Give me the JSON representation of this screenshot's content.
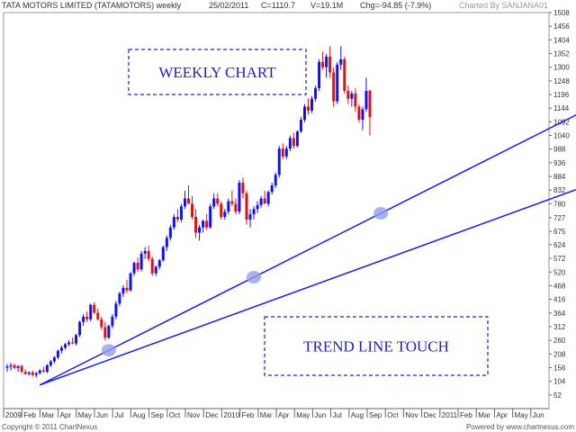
{
  "header": {
    "title": "TATA MOTORS LIMITED (TATAMOTORS) weekly",
    "date": "25/02/2011",
    "close": "C=1110.7",
    "volume": "V=19.1M",
    "change": "Chg=-94.85 (-7.9%)",
    "charted_by": "Charted By SANJANA01"
  },
  "footer": {
    "copyright": "Copyright © 2011 ChartNexus",
    "powered": "Powered by www.chartnexus.com"
  },
  "colors": {
    "up": "#1010ff",
    "down": "#e01010",
    "trendline": "#1a1aff",
    "annotation": "#2020cc",
    "touch": "#8f9ff0"
  },
  "chart_data": {
    "type": "candlestick",
    "timeframe": "weekly",
    "ylim": [
      0,
      1508
    ],
    "y_ticks": [
      52,
      104,
      156,
      208,
      260,
      312,
      364,
      416,
      468,
      520,
      572,
      624,
      675,
      727,
      780,
      832,
      884,
      936,
      988,
      1040,
      1092,
      1144,
      1196,
      1248,
      1300,
      1352,
      1404,
      1456,
      1508
    ],
    "x_ticks": [
      "2009",
      "Feb",
      "Mar",
      "Apr",
      "May",
      "Jun",
      "Jul",
      "Aug",
      "Sep",
      "Oct",
      "Nov",
      "Dec",
      "2010",
      "Feb",
      "Mar",
      "Apr",
      "May",
      "Jun",
      "Jul",
      "Aug",
      "Sep",
      "Oct",
      "Nov",
      "Dec",
      "2011",
      "Feb",
      "Mar",
      "Apr",
      "May",
      "Jun"
    ],
    "grid": false,
    "candles": [
      {
        "o": 155,
        "h": 170,
        "l": 140,
        "c": 160
      },
      {
        "o": 160,
        "h": 175,
        "l": 145,
        "c": 165
      },
      {
        "o": 165,
        "h": 172,
        "l": 150,
        "c": 155
      },
      {
        "o": 155,
        "h": 165,
        "l": 140,
        "c": 162
      },
      {
        "o": 162,
        "h": 168,
        "l": 135,
        "c": 140
      },
      {
        "o": 140,
        "h": 150,
        "l": 128,
        "c": 132
      },
      {
        "o": 132,
        "h": 142,
        "l": 125,
        "c": 138
      },
      {
        "o": 138,
        "h": 145,
        "l": 122,
        "c": 128
      },
      {
        "o": 128,
        "h": 140,
        "l": 118,
        "c": 135
      },
      {
        "o": 135,
        "h": 150,
        "l": 130,
        "c": 145
      },
      {
        "o": 145,
        "h": 160,
        "l": 138,
        "c": 140
      },
      {
        "o": 140,
        "h": 170,
        "l": 135,
        "c": 165
      },
      {
        "o": 165,
        "h": 185,
        "l": 158,
        "c": 180
      },
      {
        "o": 180,
        "h": 200,
        "l": 172,
        "c": 195
      },
      {
        "o": 195,
        "h": 225,
        "l": 188,
        "c": 220
      },
      {
        "o": 220,
        "h": 240,
        "l": 210,
        "c": 232
      },
      {
        "o": 232,
        "h": 250,
        "l": 225,
        "c": 245
      },
      {
        "o": 245,
        "h": 260,
        "l": 238,
        "c": 252
      },
      {
        "o": 252,
        "h": 270,
        "l": 245,
        "c": 248
      },
      {
        "o": 248,
        "h": 285,
        "l": 240,
        "c": 280
      },
      {
        "o": 280,
        "h": 335,
        "l": 272,
        "c": 330
      },
      {
        "o": 330,
        "h": 360,
        "l": 315,
        "c": 350
      },
      {
        "o": 350,
        "h": 370,
        "l": 330,
        "c": 340
      },
      {
        "o": 340,
        "h": 400,
        "l": 332,
        "c": 395
      },
      {
        "o": 395,
        "h": 405,
        "l": 360,
        "c": 365
      },
      {
        "o": 365,
        "h": 380,
        "l": 335,
        "c": 340
      },
      {
        "o": 340,
        "h": 350,
        "l": 300,
        "c": 310
      },
      {
        "o": 310,
        "h": 330,
        "l": 260,
        "c": 270
      },
      {
        "o": 270,
        "h": 320,
        "l": 265,
        "c": 315
      },
      {
        "o": 315,
        "h": 360,
        "l": 305,
        "c": 350
      },
      {
        "o": 350,
        "h": 410,
        "l": 340,
        "c": 400
      },
      {
        "o": 400,
        "h": 445,
        "l": 390,
        "c": 438
      },
      {
        "o": 438,
        "h": 470,
        "l": 425,
        "c": 460
      },
      {
        "o": 460,
        "h": 490,
        "l": 440,
        "c": 450
      },
      {
        "o": 450,
        "h": 520,
        "l": 445,
        "c": 515
      },
      {
        "o": 515,
        "h": 560,
        "l": 505,
        "c": 555
      },
      {
        "o": 555,
        "h": 575,
        "l": 520,
        "c": 530
      },
      {
        "o": 530,
        "h": 600,
        "l": 522,
        "c": 590
      },
      {
        "o": 590,
        "h": 615,
        "l": 570,
        "c": 600
      },
      {
        "o": 600,
        "h": 620,
        "l": 560,
        "c": 570
      },
      {
        "o": 570,
        "h": 580,
        "l": 505,
        "c": 515
      },
      {
        "o": 515,
        "h": 545,
        "l": 505,
        "c": 540
      },
      {
        "o": 540,
        "h": 570,
        "l": 530,
        "c": 565
      },
      {
        "o": 565,
        "h": 620,
        "l": 560,
        "c": 615
      },
      {
        "o": 615,
        "h": 660,
        "l": 600,
        "c": 650
      },
      {
        "o": 650,
        "h": 700,
        "l": 640,
        "c": 690
      },
      {
        "o": 690,
        "h": 740,
        "l": 680,
        "c": 730
      },
      {
        "o": 730,
        "h": 760,
        "l": 710,
        "c": 720
      },
      {
        "o": 720,
        "h": 780,
        "l": 710,
        "c": 770
      },
      {
        "o": 770,
        "h": 830,
        "l": 760,
        "c": 800
      },
      {
        "o": 800,
        "h": 850,
        "l": 790,
        "c": 780
      },
      {
        "o": 780,
        "h": 810,
        "l": 720,
        "c": 730
      },
      {
        "o": 730,
        "h": 760,
        "l": 650,
        "c": 670
      },
      {
        "o": 670,
        "h": 700,
        "l": 640,
        "c": 690
      },
      {
        "o": 690,
        "h": 720,
        "l": 670,
        "c": 715
      },
      {
        "o": 715,
        "h": 740,
        "l": 680,
        "c": 690
      },
      {
        "o": 690,
        "h": 780,
        "l": 685,
        "c": 770
      },
      {
        "o": 770,
        "h": 820,
        "l": 760,
        "c": 800
      },
      {
        "o": 800,
        "h": 820,
        "l": 770,
        "c": 780
      },
      {
        "o": 780,
        "h": 790,
        "l": 720,
        "c": 730
      },
      {
        "o": 730,
        "h": 760,
        "l": 720,
        "c": 750
      },
      {
        "o": 750,
        "h": 800,
        "l": 740,
        "c": 790
      },
      {
        "o": 790,
        "h": 830,
        "l": 770,
        "c": 780
      },
      {
        "o": 780,
        "h": 800,
        "l": 740,
        "c": 750
      },
      {
        "o": 750,
        "h": 870,
        "l": 740,
        "c": 860
      },
      {
        "o": 860,
        "h": 880,
        "l": 800,
        "c": 820
      },
      {
        "o": 820,
        "h": 830,
        "l": 700,
        "c": 720
      },
      {
        "o": 720,
        "h": 760,
        "l": 690,
        "c": 740
      },
      {
        "o": 740,
        "h": 770,
        "l": 720,
        "c": 760
      },
      {
        "o": 760,
        "h": 790,
        "l": 745,
        "c": 775
      },
      {
        "o": 775,
        "h": 810,
        "l": 765,
        "c": 800
      },
      {
        "o": 800,
        "h": 830,
        "l": 790,
        "c": 780
      },
      {
        "o": 780,
        "h": 830,
        "l": 770,
        "c": 825
      },
      {
        "o": 825,
        "h": 860,
        "l": 815,
        "c": 850
      },
      {
        "o": 850,
        "h": 900,
        "l": 840,
        "c": 890
      },
      {
        "o": 890,
        "h": 1000,
        "l": 880,
        "c": 990
      },
      {
        "o": 990,
        "h": 1010,
        "l": 950,
        "c": 960
      },
      {
        "o": 960,
        "h": 1000,
        "l": 950,
        "c": 990
      },
      {
        "o": 990,
        "h": 1040,
        "l": 980,
        "c": 1030
      },
      {
        "o": 1030,
        "h": 1050,
        "l": 990,
        "c": 1000
      },
      {
        "o": 1000,
        "h": 1060,
        "l": 995,
        "c": 1055
      },
      {
        "o": 1055,
        "h": 1110,
        "l": 1050,
        "c": 1100
      },
      {
        "o": 1100,
        "h": 1160,
        "l": 1090,
        "c": 1150
      },
      {
        "o": 1150,
        "h": 1180,
        "l": 1120,
        "c": 1135
      },
      {
        "o": 1135,
        "h": 1190,
        "l": 1125,
        "c": 1180
      },
      {
        "o": 1180,
        "h": 1230,
        "l": 1170,
        "c": 1220
      },
      {
        "o": 1220,
        "h": 1330,
        "l": 1210,
        "c": 1320
      },
      {
        "o": 1320,
        "h": 1360,
        "l": 1290,
        "c": 1300
      },
      {
        "o": 1300,
        "h": 1350,
        "l": 1260,
        "c": 1340
      },
      {
        "o": 1340,
        "h": 1380,
        "l": 1260,
        "c": 1280
      },
      {
        "o": 1280,
        "h": 1300,
        "l": 1150,
        "c": 1170
      },
      {
        "o": 1170,
        "h": 1320,
        "l": 1160,
        "c": 1310
      },
      {
        "o": 1310,
        "h": 1380,
        "l": 1290,
        "c": 1330
      },
      {
        "o": 1330,
        "h": 1340,
        "l": 1200,
        "c": 1210
      },
      {
        "o": 1210,
        "h": 1230,
        "l": 1160,
        "c": 1180
      },
      {
        "o": 1180,
        "h": 1210,
        "l": 1150,
        "c": 1200
      },
      {
        "o": 1200,
        "h": 1220,
        "l": 1130,
        "c": 1150
      },
      {
        "o": 1150,
        "h": 1160,
        "l": 1090,
        "c": 1100
      },
      {
        "o": 1100,
        "h": 1150,
        "l": 1060,
        "c": 1140
      },
      {
        "o": 1140,
        "h": 1260,
        "l": 1130,
        "c": 1210
      },
      {
        "o": 1210,
        "h": 1215,
        "l": 1040,
        "c": 1110
      }
    ],
    "annotations": [
      {
        "text": "WEEKLY CHART",
        "style": "dashed-box"
      },
      {
        "text": "TREND LINE TOUCH",
        "style": "dashed-box"
      }
    ],
    "trendlines": [
      {
        "name": "upper",
        "from": {
          "i": 9,
          "v": 90
        },
        "to": {
          "i": 160,
          "v": 1140
        }
      },
      {
        "name": "lower",
        "from": {
          "i": 9,
          "v": 90
        },
        "to": {
          "i": 170,
          "v": 900
        }
      }
    ],
    "touch_points": [
      {
        "i": 28
      },
      {
        "i": 68
      },
      {
        "i": 103
      }
    ]
  }
}
